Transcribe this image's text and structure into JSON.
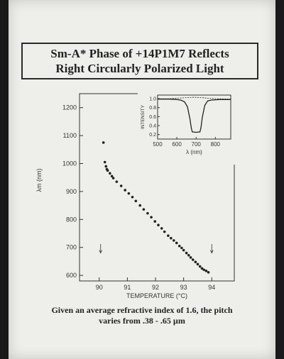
{
  "title": {
    "line1": "Sm-A* Phase of +14P1M7 Reflects",
    "line2": "Right Circularly Polarized Light"
  },
  "caption": {
    "line1": "Given an average refractive index of 1.6, the pitch",
    "line2": "varies from .38 - .65 µm"
  },
  "chart_data": [
    {
      "type": "scatter",
      "xlabel": "TEMPERATURE (°C)",
      "ylabel": "λm (nm)",
      "xlim": [
        89.3,
        94.8
      ],
      "ylim": [
        580,
        1250
      ],
      "xticks": [
        90,
        91,
        92,
        93,
        94
      ],
      "yticks": [
        600,
        700,
        800,
        900,
        1000,
        1100,
        1200
      ],
      "grid": false,
      "points": [
        {
          "x": 90.15,
          "y": 1075
        },
        {
          "x": 90.2,
          "y": 1005
        },
        {
          "x": 90.24,
          "y": 990
        },
        {
          "x": 90.27,
          "y": 980
        },
        {
          "x": 90.3,
          "y": 975
        },
        {
          "x": 90.38,
          "y": 965
        },
        {
          "x": 90.45,
          "y": 955
        },
        {
          "x": 90.5,
          "y": 948
        },
        {
          "x": 90.62,
          "y": 935
        },
        {
          "x": 90.78,
          "y": 920
        },
        {
          "x": 90.92,
          "y": 905
        },
        {
          "x": 91.05,
          "y": 893
        },
        {
          "x": 91.18,
          "y": 880
        },
        {
          "x": 91.3,
          "y": 866
        },
        {
          "x": 91.45,
          "y": 850
        },
        {
          "x": 91.58,
          "y": 836
        },
        {
          "x": 91.72,
          "y": 822
        },
        {
          "x": 91.85,
          "y": 808
        },
        {
          "x": 91.98,
          "y": 793
        },
        {
          "x": 92.1,
          "y": 780
        },
        {
          "x": 92.22,
          "y": 768
        },
        {
          "x": 92.32,
          "y": 756
        },
        {
          "x": 92.45,
          "y": 742
        },
        {
          "x": 92.55,
          "y": 733
        },
        {
          "x": 92.65,
          "y": 725
        },
        {
          "x": 92.75,
          "y": 716
        },
        {
          "x": 92.85,
          "y": 705
        },
        {
          "x": 92.93,
          "y": 698
        },
        {
          "x": 93.0,
          "y": 690
        },
        {
          "x": 93.1,
          "y": 680
        },
        {
          "x": 93.18,
          "y": 672
        },
        {
          "x": 93.25,
          "y": 664
        },
        {
          "x": 93.33,
          "y": 656
        },
        {
          "x": 93.42,
          "y": 648
        },
        {
          "x": 93.5,
          "y": 640
        },
        {
          "x": 93.58,
          "y": 632
        },
        {
          "x": 93.65,
          "y": 625
        },
        {
          "x": 93.72,
          "y": 620
        },
        {
          "x": 93.8,
          "y": 616
        },
        {
          "x": 93.88,
          "y": 611
        }
      ],
      "arrows_at_x": [
        90.05,
        94.0
      ]
    },
    {
      "type": "line",
      "xlabel": "λ (nm)",
      "ylabel": "INTENSITY",
      "xlim": [
        500,
        880
      ],
      "ylim": [
        0.1,
        1.08
      ],
      "xticks": [
        500,
        600,
        700,
        800
      ],
      "yticks": [
        0.2,
        0.4,
        0.6,
        0.8,
        1.0
      ],
      "ytick_labels": [
        "0.2",
        "0.4",
        "0.6",
        "0.8",
        "1.0"
      ],
      "series": [
        {
          "style": "solid",
          "x": [
            500,
            560,
            600,
            620,
            640,
            655,
            668,
            675,
            680,
            700,
            720,
            725,
            732,
            745,
            760,
            780,
            820,
            880
          ],
          "y": [
            0.99,
            0.99,
            0.98,
            0.97,
            0.93,
            0.82,
            0.55,
            0.35,
            0.26,
            0.25,
            0.26,
            0.35,
            0.58,
            0.85,
            0.95,
            0.97,
            0.98,
            0.98
          ]
        },
        {
          "style": "dashed",
          "x": [
            500,
            560,
            600,
            640,
            680,
            700,
            740,
            760,
            800,
            880
          ],
          "y": [
            1.0,
            1.0,
            1.01,
            1.02,
            1.03,
            1.03,
            1.02,
            1.01,
            1.0,
            0.99
          ]
        }
      ]
    }
  ]
}
